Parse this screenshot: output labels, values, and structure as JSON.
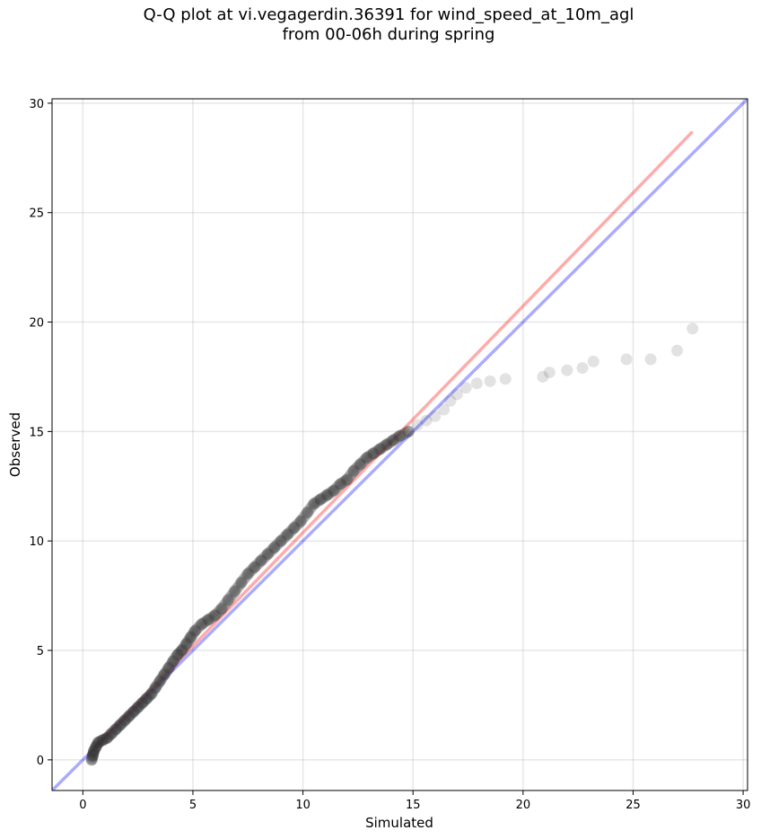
{
  "chart_data": {
    "type": "scatter",
    "title_line1": "Q-Q plot at vi.vegagerdin.36391 for wind_speed_at_10m_agl",
    "title_line2": "from 00-06h during spring",
    "xlabel": "Simulated",
    "ylabel": "Observed",
    "xlim": [
      -1.4,
      30.2
    ],
    "ylim": [
      -1.4,
      30.2
    ],
    "xticks": [
      0,
      5,
      10,
      15,
      20,
      25,
      30
    ],
    "yticks": [
      0,
      5,
      10,
      15,
      20,
      25,
      30
    ],
    "grid": true,
    "point_color": "#333333",
    "identity_line": {
      "color": "#0000ff",
      "from": [
        -1.4,
        -1.4
      ],
      "to": [
        30.2,
        30.2
      ]
    },
    "fit_line": {
      "color": "#ff0000",
      "from": [
        0.5,
        0.55
      ],
      "to": [
        27.7,
        28.7
      ]
    },
    "points": [
      [
        0.4,
        0.0
      ],
      [
        0.45,
        0.2
      ],
      [
        0.5,
        0.4
      ],
      [
        0.6,
        0.6
      ],
      [
        0.7,
        0.8
      ],
      [
        0.9,
        0.9
      ],
      [
        1.1,
        1.0
      ],
      [
        1.3,
        1.2
      ],
      [
        1.5,
        1.4
      ],
      [
        1.7,
        1.6
      ],
      [
        1.9,
        1.8
      ],
      [
        2.1,
        2.0
      ],
      [
        2.3,
        2.2
      ],
      [
        2.5,
        2.4
      ],
      [
        2.7,
        2.6
      ],
      [
        2.9,
        2.8
      ],
      [
        3.1,
        3.0
      ],
      [
        3.3,
        3.3
      ],
      [
        3.5,
        3.6
      ],
      [
        3.7,
        3.9
      ],
      [
        3.9,
        4.2
      ],
      [
        4.1,
        4.5
      ],
      [
        4.3,
        4.8
      ],
      [
        4.5,
        5.0
      ],
      [
        4.7,
        5.3
      ],
      [
        4.9,
        5.6
      ],
      [
        5.1,
        5.9
      ],
      [
        5.4,
        6.2
      ],
      [
        5.7,
        6.4
      ],
      [
        6.0,
        6.6
      ],
      [
        6.3,
        6.9
      ],
      [
        6.6,
        7.3
      ],
      [
        6.9,
        7.7
      ],
      [
        7.2,
        8.1
      ],
      [
        7.5,
        8.5
      ],
      [
        7.8,
        8.8
      ],
      [
        8.1,
        9.1
      ],
      [
        8.4,
        9.4
      ],
      [
        8.7,
        9.7
      ],
      [
        9.0,
        10.0
      ],
      [
        9.3,
        10.3
      ],
      [
        9.6,
        10.6
      ],
      [
        9.9,
        10.9
      ],
      [
        10.2,
        11.3
      ],
      [
        10.5,
        11.7
      ],
      [
        10.8,
        11.9
      ],
      [
        11.1,
        12.1
      ],
      [
        11.4,
        12.3
      ],
      [
        11.7,
        12.6
      ],
      [
        12.0,
        12.8
      ],
      [
        12.3,
        13.2
      ],
      [
        12.6,
        13.5
      ],
      [
        12.9,
        13.8
      ],
      [
        13.2,
        14.0
      ],
      [
        13.5,
        14.2
      ],
      [
        13.8,
        14.4
      ],
      [
        14.1,
        14.6
      ],
      [
        14.4,
        14.8
      ],
      [
        14.8,
        15.0
      ],
      [
        15.2,
        15.3
      ],
      [
        15.6,
        15.5
      ],
      [
        16.0,
        15.7
      ],
      [
        16.4,
        16.0
      ],
      [
        16.7,
        16.4
      ],
      [
        17.0,
        16.7
      ],
      [
        17.4,
        17.0
      ],
      [
        17.9,
        17.2
      ],
      [
        18.5,
        17.3
      ],
      [
        19.2,
        17.4
      ],
      [
        20.9,
        17.5
      ],
      [
        21.2,
        17.7
      ],
      [
        22.0,
        17.8
      ],
      [
        22.7,
        17.9
      ],
      [
        23.2,
        18.2
      ],
      [
        24.7,
        18.3
      ],
      [
        25.8,
        18.3
      ],
      [
        27.0,
        18.7
      ],
      [
        27.7,
        19.7
      ]
    ]
  }
}
